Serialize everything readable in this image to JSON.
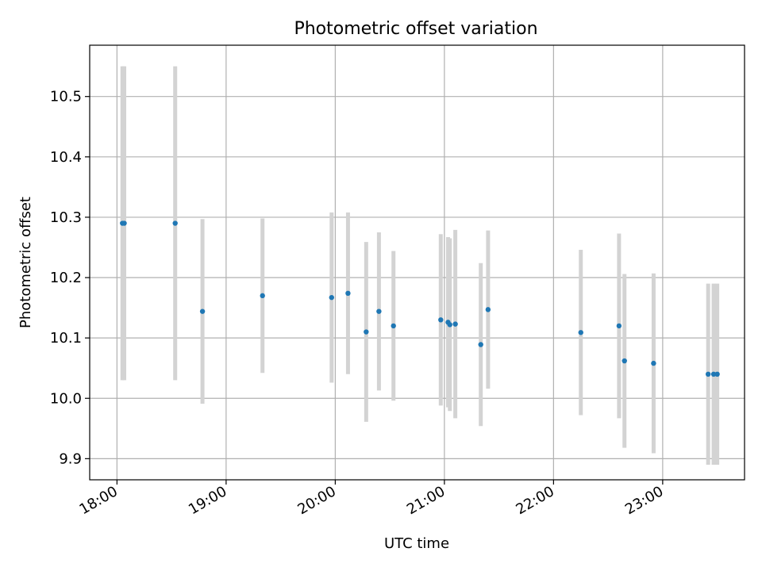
{
  "chart_data": {
    "type": "scatter",
    "title": "Photometric offset variation",
    "xlabel": "UTC time",
    "ylabel": "Photometric offset",
    "x_ticks": [
      "18:00",
      "19:00",
      "20:00",
      "21:00",
      "22:00",
      "23:00"
    ],
    "y_ticks": [
      "9.9",
      "10.0",
      "10.1",
      "10.2",
      "10.3",
      "10.4",
      "10.5"
    ],
    "xlim": [
      "17:45",
      "23:45"
    ],
    "ylim": [
      9.865,
      10.585
    ],
    "grid": true,
    "legend": "none",
    "colors": {
      "point": "#1f77b4",
      "errorbar": "#d3d3d3",
      "grid": "#b0b0b0"
    },
    "series": [
      {
        "x": [
          "18:03",
          "18:04",
          "18:32",
          "18:47",
          "19:20",
          "19:58",
          "20:07",
          "20:17",
          "20:24",
          "20:32",
          "20:58",
          "21:02",
          "21:03",
          "21:06",
          "21:20",
          "21:24",
          "22:15",
          "22:36",
          "22:39",
          "22:55",
          "23:25",
          "23:28",
          "23:30"
        ],
        "y": [
          10.29,
          10.29,
          10.29,
          10.144,
          10.17,
          10.167,
          10.174,
          10.11,
          10.144,
          10.12,
          10.13,
          10.126,
          10.122,
          10.123,
          10.089,
          10.147,
          10.109,
          10.12,
          10.062,
          10.058,
          10.04,
          10.04,
          10.04
        ],
        "error": [
          0.26,
          0.26,
          0.26,
          0.153,
          0.128,
          0.141,
          0.134,
          0.149,
          0.131,
          0.124,
          0.142,
          0.141,
          0.143,
          0.156,
          0.135,
          0.131,
          0.137,
          0.153,
          0.144,
          0.149,
          0.15,
          0.15,
          0.15
        ]
      }
    ]
  }
}
